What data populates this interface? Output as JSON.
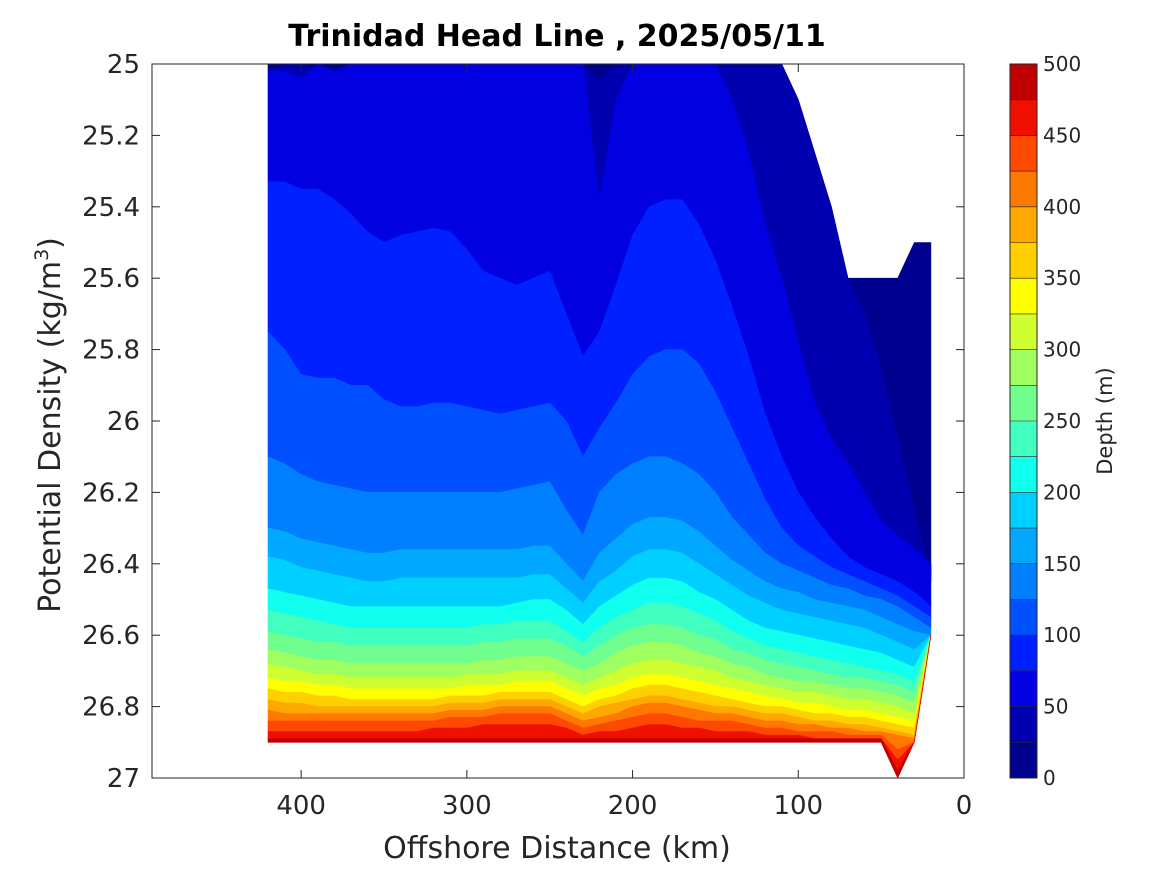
{
  "chart_data": {
    "type": "contour",
    "title": "Trinidad Head Line , 2025/05/11",
    "xlabel": "Offshore Distance (km)",
    "ylabel_main": "Potential Density (kg/m",
    "ylabel_sup": "3",
    "ylabel_close": ")",
    "colorbar_label": "Depth (m)",
    "x_reversed": true,
    "xlim": [
      490,
      0
    ],
    "ylim": [
      25,
      27
    ],
    "y_reversed": true,
    "x_ticks": [
      400,
      300,
      200,
      100,
      0
    ],
    "x_tick_labels": [
      "400",
      "300",
      "200",
      "100",
      "0"
    ],
    "y_ticks": [
      25,
      25.2,
      25.4,
      25.6,
      25.8,
      26,
      26.2,
      26.4,
      26.6,
      26.8,
      27
    ],
    "y_tick_labels": [
      "25",
      "25.2",
      "25.4",
      "25.6",
      "25.8",
      "26",
      "26.2",
      "26.4",
      "26.6",
      "26.8",
      "27"
    ],
    "colorbar_ticks": [
      0,
      50,
      100,
      150,
      200,
      250,
      300,
      350,
      400,
      450,
      500
    ],
    "colorbar_tick_labels": [
      "0",
      "50",
      "100",
      "150",
      "200",
      "250",
      "300",
      "350",
      "400",
      "450",
      "500"
    ],
    "colorbar_range": [
      0,
      500
    ],
    "level_step": 25,
    "level_colors": [
      "#00008F",
      "#0000B0",
      "#0000E0",
      "#0020FF",
      "#0050FF",
      "#0080FF",
      "#00A8FF",
      "#00D0FF",
      "#10FFEF",
      "#40FFBF",
      "#70FF8F",
      "#A0FF60",
      "#CFFF30",
      "#FFFF00",
      "#FFD000",
      "#FFA800",
      "#FF7800",
      "#FF4800",
      "#F01000",
      "#C00000"
    ],
    "x": [
      420,
      410,
      400,
      390,
      380,
      370,
      360,
      350,
      340,
      330,
      320,
      310,
      300,
      290,
      280,
      270,
      260,
      250,
      240,
      230,
      220,
      210,
      200,
      190,
      180,
      170,
      160,
      150,
      140,
      130,
      120,
      110,
      100,
      90,
      80,
      70,
      60,
      50,
      40,
      30,
      20
    ],
    "boundary_isopycnals": {
      "top_density": [
        25,
        25,
        25,
        25,
        25,
        25,
        25,
        25,
        25,
        25,
        25,
        25,
        25,
        25,
        25,
        25,
        25,
        25,
        25,
        25,
        25,
        25,
        25,
        25,
        25,
        25,
        25,
        25,
        25,
        25,
        25,
        25,
        25.1,
        25.25,
        25.4,
        25.6,
        25.6,
        25.6,
        25.6,
        25.5,
        25.5
      ],
      "bottom_density": [
        26.9,
        26.9,
        26.9,
        26.9,
        26.9,
        26.9,
        26.9,
        26.9,
        26.9,
        26.9,
        26.9,
        26.9,
        26.9,
        26.9,
        26.9,
        26.9,
        26.9,
        26.9,
        26.9,
        26.9,
        26.9,
        26.9,
        26.9,
        26.9,
        26.9,
        26.9,
        26.9,
        26.9,
        26.9,
        26.9,
        26.9,
        26.9,
        26.9,
        26.9,
        26.9,
        26.9,
        26.9,
        26.9,
        27,
        26.9,
        26.6
      ]
    },
    "depth_isolines": [
      {
        "depth": 25,
        "density": [
          25.02,
          25.0,
          25.0,
          25.02,
          25.02,
          25.0,
          25.0,
          25.0,
          25.0,
          25.0,
          25.0,
          25.0,
          25.0,
          25.0,
          25.0,
          25.0,
          25.0,
          25.0,
          25.0,
          25.0,
          25.05,
          25.0,
          25.0,
          25.0,
          25.0,
          25.0,
          25.0,
          25.0,
          25.0,
          25.0,
          25.0,
          25.0,
          25.1,
          25.25,
          25.4,
          25.6,
          25.7,
          25.85,
          26.05,
          26.25,
          26.45
        ]
      },
      {
        "depth": 50,
        "density": [
          25.02,
          25.02,
          25.04,
          25.0,
          25.02,
          25.0,
          25.0,
          25.0,
          25.0,
          25.0,
          25.0,
          25.0,
          25.0,
          25.0,
          25.0,
          25.0,
          25.0,
          25.0,
          25.0,
          25.0,
          25.38,
          25.1,
          25.0,
          25.0,
          25.0,
          25.0,
          25.0,
          25.0,
          25.1,
          25.25,
          25.45,
          25.6,
          25.78,
          25.95,
          26.05,
          26.12,
          26.2,
          26.28,
          26.32,
          26.36,
          26.4
        ]
      },
      {
        "depth": 75,
        "density": [
          25.33,
          25.33,
          25.35,
          25.35,
          25.38,
          25.42,
          25.47,
          25.5,
          25.48,
          25.47,
          25.46,
          25.47,
          25.52,
          25.58,
          25.6,
          25.62,
          25.6,
          25.58,
          25.7,
          25.82,
          25.75,
          25.62,
          25.48,
          25.4,
          25.38,
          25.38,
          25.45,
          25.55,
          25.68,
          25.82,
          25.98,
          26.1,
          26.2,
          26.27,
          26.33,
          26.38,
          26.41,
          26.43,
          26.45,
          26.48,
          26.52
        ]
      },
      {
        "depth": 100,
        "density": [
          25.75,
          25.8,
          25.87,
          25.88,
          25.88,
          25.9,
          25.9,
          25.94,
          25.96,
          25.96,
          25.95,
          25.95,
          25.96,
          25.97,
          25.98,
          25.97,
          25.96,
          25.95,
          26.0,
          26.1,
          26.02,
          25.95,
          25.87,
          25.82,
          25.8,
          25.8,
          25.84,
          25.92,
          26.02,
          26.12,
          26.22,
          26.3,
          26.35,
          26.38,
          26.41,
          26.43,
          26.45,
          26.47,
          26.49,
          26.52,
          26.55
        ]
      },
      {
        "depth": 125,
        "density": [
          26.1,
          26.12,
          26.15,
          26.17,
          26.18,
          26.19,
          26.2,
          26.2,
          26.2,
          26.2,
          26.2,
          26.2,
          26.2,
          26.2,
          26.2,
          26.19,
          26.18,
          26.17,
          26.25,
          26.32,
          26.2,
          26.15,
          26.12,
          26.1,
          26.1,
          26.12,
          26.15,
          26.2,
          26.27,
          26.32,
          26.37,
          26.4,
          26.42,
          26.44,
          26.46,
          26.47,
          26.49,
          26.5,
          26.52,
          26.55,
          26.58
        ]
      },
      {
        "depth": 150,
        "density": [
          26.3,
          26.31,
          26.33,
          26.34,
          26.35,
          26.36,
          26.37,
          26.37,
          26.36,
          26.36,
          26.36,
          26.36,
          26.36,
          26.36,
          26.36,
          26.36,
          26.35,
          26.35,
          26.4,
          26.45,
          26.37,
          26.33,
          26.29,
          26.27,
          26.27,
          26.28,
          26.31,
          26.35,
          26.39,
          26.42,
          26.45,
          26.47,
          26.48,
          26.5,
          26.51,
          26.52,
          26.53,
          26.55,
          26.57,
          26.59,
          26.62
        ]
      },
      {
        "depth": 175,
        "density": [
          26.38,
          26.39,
          26.41,
          26.42,
          26.43,
          26.44,
          26.45,
          26.45,
          26.44,
          26.44,
          26.44,
          26.44,
          26.44,
          26.44,
          26.44,
          26.44,
          26.43,
          26.43,
          26.47,
          26.51,
          26.45,
          26.42,
          26.38,
          26.36,
          26.36,
          26.37,
          26.4,
          26.43,
          26.46,
          26.49,
          26.51,
          26.53,
          26.54,
          26.55,
          26.56,
          26.57,
          26.58,
          26.6,
          26.62,
          26.64,
          26.66
        ]
      },
      {
        "depth": 200,
        "density": [
          26.47,
          26.48,
          26.49,
          26.5,
          26.51,
          26.52,
          26.52,
          26.52,
          26.52,
          26.52,
          26.52,
          26.52,
          26.52,
          26.52,
          26.52,
          26.51,
          26.5,
          26.5,
          26.53,
          26.57,
          26.52,
          26.49,
          26.46,
          26.44,
          26.44,
          26.45,
          26.48,
          26.5,
          26.53,
          26.56,
          26.58,
          26.59,
          26.6,
          26.61,
          26.62,
          26.63,
          26.64,
          26.65,
          26.67,
          26.69,
          26.71
        ]
      },
      {
        "depth": 225,
        "density": [
          26.53,
          26.54,
          26.55,
          26.56,
          26.57,
          26.58,
          26.58,
          26.58,
          26.58,
          26.58,
          26.58,
          26.58,
          26.58,
          26.57,
          26.57,
          26.56,
          26.56,
          26.56,
          26.59,
          26.62,
          26.58,
          26.55,
          26.53,
          26.51,
          26.51,
          26.52,
          26.54,
          26.56,
          26.59,
          26.61,
          26.63,
          26.64,
          26.65,
          26.66,
          26.67,
          26.68,
          26.69,
          26.7,
          26.71,
          26.73,
          26.75
        ]
      },
      {
        "depth": 250,
        "density": [
          26.59,
          26.6,
          26.61,
          26.62,
          26.62,
          26.63,
          26.63,
          26.63,
          26.63,
          26.63,
          26.63,
          26.63,
          26.63,
          26.62,
          26.62,
          26.61,
          26.61,
          26.61,
          26.63,
          26.66,
          26.63,
          26.6,
          26.58,
          26.57,
          26.57,
          26.58,
          26.6,
          26.61,
          26.64,
          26.65,
          26.67,
          26.68,
          26.69,
          26.7,
          26.71,
          26.72,
          26.72,
          26.73,
          26.74,
          26.76,
          26.78
        ]
      },
      {
        "depth": 275,
        "density": [
          26.64,
          26.65,
          26.66,
          26.67,
          26.67,
          26.68,
          26.68,
          26.68,
          26.68,
          26.68,
          26.68,
          26.68,
          26.68,
          26.67,
          26.67,
          26.66,
          26.66,
          26.66,
          26.68,
          26.7,
          26.68,
          26.65,
          26.63,
          26.62,
          26.62,
          26.63,
          26.65,
          26.66,
          26.68,
          26.69,
          26.71,
          26.72,
          26.73,
          26.73,
          26.74,
          26.75,
          26.75,
          26.76,
          26.77,
          26.79,
          26.81
        ]
      },
      {
        "depth": 300,
        "density": [
          26.68,
          26.69,
          26.7,
          26.71,
          26.71,
          26.72,
          26.72,
          26.72,
          26.72,
          26.72,
          26.72,
          26.72,
          26.71,
          26.71,
          26.71,
          26.7,
          26.7,
          26.7,
          26.72,
          26.74,
          26.72,
          26.7,
          26.68,
          26.67,
          26.67,
          26.68,
          26.69,
          26.7,
          26.72,
          26.73,
          26.74,
          26.75,
          26.76,
          26.76,
          26.77,
          26.78,
          26.78,
          26.79,
          26.8,
          26.82,
          26.83
        ]
      },
      {
        "depth": 325,
        "density": [
          26.72,
          26.73,
          26.73,
          26.74,
          26.74,
          26.75,
          26.75,
          26.75,
          26.75,
          26.75,
          26.75,
          26.75,
          26.74,
          26.74,
          26.74,
          26.73,
          26.73,
          26.73,
          26.75,
          26.77,
          26.75,
          26.74,
          26.72,
          26.71,
          26.71,
          26.72,
          26.73,
          26.74,
          26.75,
          26.76,
          26.77,
          26.78,
          26.79,
          26.79,
          26.8,
          26.81,
          26.81,
          26.82,
          26.83,
          26.84,
          26.85
        ]
      },
      {
        "depth": 350,
        "density": [
          26.75,
          26.76,
          26.76,
          26.77,
          26.77,
          26.78,
          26.78,
          26.78,
          26.78,
          26.78,
          26.78,
          26.77,
          26.77,
          26.77,
          26.76,
          26.76,
          26.76,
          26.76,
          26.78,
          26.8,
          26.78,
          26.77,
          26.75,
          26.74,
          26.74,
          26.75,
          26.76,
          26.77,
          26.78,
          26.79,
          26.8,
          26.8,
          26.81,
          26.82,
          26.82,
          26.83,
          26.83,
          26.84,
          26.85,
          26.86,
          26.87
        ]
      },
      {
        "depth": 375,
        "density": [
          26.78,
          26.79,
          26.79,
          26.8,
          26.8,
          26.8,
          26.8,
          26.8,
          26.8,
          26.8,
          26.8,
          26.79,
          26.79,
          26.79,
          26.78,
          26.78,
          26.78,
          26.78,
          26.8,
          26.82,
          26.8,
          26.79,
          26.78,
          26.77,
          26.77,
          26.78,
          26.79,
          26.8,
          26.8,
          26.81,
          26.82,
          26.82,
          26.83,
          26.84,
          26.84,
          26.85,
          26.85,
          26.86,
          26.87,
          26.88,
          26.88
        ]
      },
      {
        "depth": 400,
        "density": [
          26.81,
          26.82,
          26.82,
          26.82,
          26.82,
          26.82,
          26.82,
          26.82,
          26.82,
          26.82,
          26.82,
          26.81,
          26.81,
          26.81,
          26.8,
          26.8,
          26.8,
          26.8,
          26.82,
          26.84,
          26.83,
          26.82,
          26.8,
          26.79,
          26.79,
          26.8,
          26.81,
          26.82,
          26.82,
          26.83,
          26.84,
          26.84,
          26.85,
          26.85,
          26.86,
          26.86,
          26.87,
          26.87,
          26.88,
          26.89,
          26.89
        ]
      },
      {
        "depth": 425,
        "density": [
          26.84,
          26.84,
          26.84,
          26.84,
          26.84,
          26.84,
          26.84,
          26.84,
          26.84,
          26.84,
          26.84,
          26.83,
          26.83,
          26.83,
          26.82,
          26.82,
          26.82,
          26.82,
          26.84,
          26.86,
          26.85,
          26.84,
          26.83,
          26.82,
          26.82,
          26.83,
          26.84,
          26.84,
          26.84,
          26.85,
          26.86,
          26.86,
          26.87,
          26.87,
          26.87,
          26.88,
          26.88,
          26.88,
          26.92,
          26.9,
          26.9
        ]
      },
      {
        "depth": 450,
        "density": [
          26.87,
          26.87,
          26.87,
          26.87,
          26.87,
          26.87,
          26.87,
          26.87,
          26.87,
          26.87,
          26.86,
          26.86,
          26.86,
          26.85,
          26.85,
          26.85,
          26.85,
          26.85,
          26.86,
          26.88,
          26.87,
          26.87,
          26.86,
          26.85,
          26.85,
          26.86,
          26.86,
          26.87,
          26.87,
          26.87,
          26.88,
          26.88,
          26.88,
          26.89,
          26.89,
          26.89,
          26.89,
          26.89,
          26.95,
          26.9,
          26.9
        ]
      },
      {
        "depth": 475,
        "density": [
          26.89,
          26.89,
          26.89,
          26.89,
          26.89,
          26.89,
          26.89,
          26.89,
          26.89,
          26.89,
          26.89,
          26.89,
          26.89,
          26.89,
          26.89,
          26.89,
          26.89,
          26.89,
          26.89,
          26.89,
          26.89,
          26.89,
          26.89,
          26.89,
          26.89,
          26.89,
          26.89,
          26.89,
          26.89,
          26.89,
          26.89,
          26.89,
          26.89,
          26.89,
          26.89,
          26.89,
          26.89,
          26.89,
          26.98,
          26.9,
          26.9
        ]
      }
    ]
  }
}
